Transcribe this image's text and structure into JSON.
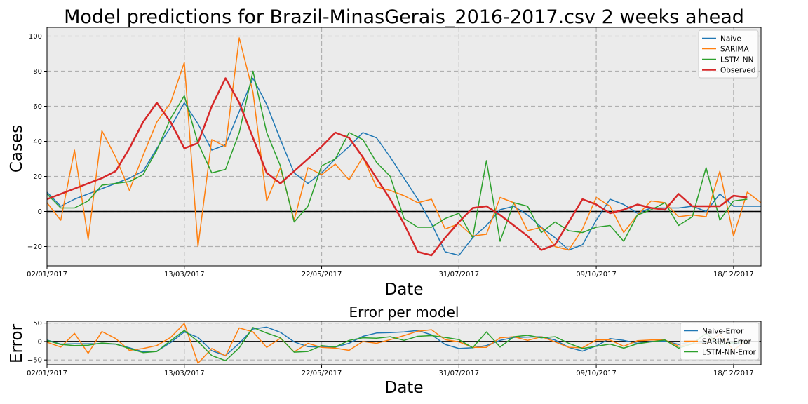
{
  "chart_data": [
    {
      "type": "line",
      "title": "Model predictions for Brazil-MinasGerais_2016-2017.csv 2 weeks ahead",
      "xlabel": "Date",
      "ylabel": "Cases",
      "xlim": [
        0,
        52
      ],
      "ylim": [
        -31,
        105
      ],
      "xticks": [
        0,
        10,
        20,
        30,
        40,
        50
      ],
      "xticklabels": [
        "02/01/2017",
        "13/03/2017",
        "22/05/2017",
        "31/07/2017",
        "09/10/2017",
        "18/12/2017"
      ],
      "yticks": [
        -20,
        0,
        20,
        40,
        60,
        80,
        100
      ],
      "yticklabels": [
        "−20",
        "0",
        "20",
        "40",
        "60",
        "80",
        "100"
      ],
      "grid": true,
      "zero_line": true,
      "legend_position": "top-right",
      "series": [
        {
          "name": "Naive",
          "color": "#1f77b4",
          "values": [
            11,
            3,
            7,
            10,
            13,
            16,
            19,
            23,
            36,
            48,
            62,
            50,
            35,
            38,
            57,
            76,
            61,
            41,
            22,
            16,
            22,
            30,
            37,
            45,
            42,
            31,
            19,
            7,
            -7,
            -23,
            -25,
            -15,
            -8,
            1,
            3,
            -2,
            -9,
            -15,
            -22,
            -19,
            -5,
            7,
            4,
            -1,
            2,
            2,
            2,
            3,
            0,
            10,
            3,
            3,
            3
          ]
        },
        {
          "name": "SARIMA",
          "color": "#ff7f0e",
          "values": [
            5,
            -5,
            35,
            -16,
            46,
            31,
            12,
            32,
            51,
            62,
            85,
            -20,
            41,
            37,
            99,
            68,
            6,
            25,
            -5,
            25,
            21,
            27,
            18,
            31,
            14,
            12,
            9,
            5,
            7,
            -10,
            -7,
            -14,
            -13,
            8,
            5,
            -11,
            -9,
            -20,
            -22,
            -10,
            8,
            3,
            -12,
            -2,
            6,
            5,
            -3,
            -2,
            -3,
            23,
            -14,
            11,
            5
          ]
        },
        {
          "name": "LSTM-NN",
          "color": "#2ca02c",
          "values": [
            10,
            2,
            2,
            6,
            15,
            16,
            17,
            21,
            35,
            53,
            66,
            39,
            22,
            24,
            45,
            80,
            45,
            26,
            -6,
            3,
            26,
            30,
            45,
            41,
            28,
            20,
            -4,
            -9,
            -9,
            -4,
            -1,
            -15,
            29,
            -17,
            5,
            3,
            -12,
            -6,
            -11,
            -12,
            -9,
            -8,
            -17,
            -2,
            1,
            5,
            -8,
            -3,
            25,
            -5,
            6,
            7
          ]
        },
        {
          "name": "Observed",
          "color": "#d62728",
          "values": [
            7,
            10,
            13,
            16,
            19,
            23,
            36,
            51,
            62,
            51,
            36,
            39,
            60,
            76,
            62,
            42,
            22,
            16,
            23,
            30,
            37,
            45,
            42,
            31,
            19,
            7,
            -7,
            -23,
            -25,
            -15,
            -6,
            2,
            3,
            -2,
            -8,
            -14,
            -22,
            -19,
            -6,
            7,
            4,
            -1,
            1,
            4,
            2,
            1,
            10,
            3,
            3,
            3,
            9,
            8
          ]
        }
      ]
    },
    {
      "type": "line",
      "title": "Error per model",
      "xlabel": "Date",
      "ylabel": "Error",
      "xlim": [
        0,
        52
      ],
      "ylim": [
        -63,
        55
      ],
      "xticks": [
        0,
        10,
        20,
        30,
        40,
        50
      ],
      "xticklabels": [
        "02/01/2017",
        "13/03/2017",
        "22/05/2017",
        "31/07/2017",
        "09/10/2017",
        "18/12/2017"
      ],
      "yticks": [
        -50,
        0,
        50
      ],
      "yticklabels": [
        "−50",
        "0",
        "50"
      ],
      "grid": true,
      "zero_line": true,
      "legend_position": "right",
      "series": [
        {
          "name": "Naive-Error",
          "color": "#1f77b4",
          "values": [
            4,
            -7,
            -6,
            -6,
            -6,
            -7,
            -17,
            -28,
            -26,
            -3,
            26,
            11,
            -25,
            -38,
            -5,
            34,
            39,
            25,
            -1,
            -14,
            -15,
            -15,
            -5,
            14,
            23,
            24,
            26,
            30,
            18,
            -8,
            -19,
            -17,
            -11,
            3,
            11,
            12,
            13,
            4,
            -16,
            -26,
            -12,
            8,
            3,
            -5,
            0,
            1,
            -8,
            0,
            -3,
            7,
            -6,
            -5
          ]
        },
        {
          "name": "SARIMA-Error",
          "color": "#ff7f0e",
          "values": [
            -2,
            -15,
            22,
            -32,
            27,
            8,
            -24,
            -19,
            -11,
            11,
            49,
            -59,
            -19,
            -39,
            37,
            26,
            -16,
            9,
            -28,
            -5,
            -16,
            -18,
            -24,
            0,
            -5,
            5,
            16,
            28,
            32,
            5,
            -1,
            -16,
            -16,
            10,
            13,
            3,
            13,
            -1,
            -16,
            -17,
            4,
            4,
            -13,
            2,
            4,
            4,
            -13,
            -5,
            -6,
            20,
            -23,
            3
          ]
        },
        {
          "name": "LSTM-NN-Error",
          "color": "#2ca02c",
          "values": [
            3,
            -8,
            -11,
            -10,
            -4,
            -7,
            -19,
            -30,
            -27,
            2,
            30,
            0,
            -38,
            -52,
            -17,
            38,
            23,
            10,
            -29,
            -27,
            -11,
            -15,
            3,
            10,
            9,
            13,
            3,
            14,
            16,
            11,
            5,
            -17,
            26,
            -15,
            13,
            17,
            10,
            13,
            -5,
            -19,
            -13,
            -7,
            -18,
            -6,
            -1,
            4,
            -18,
            -6,
            22,
            -8,
            -3,
            -1
          ]
        }
      ]
    }
  ]
}
